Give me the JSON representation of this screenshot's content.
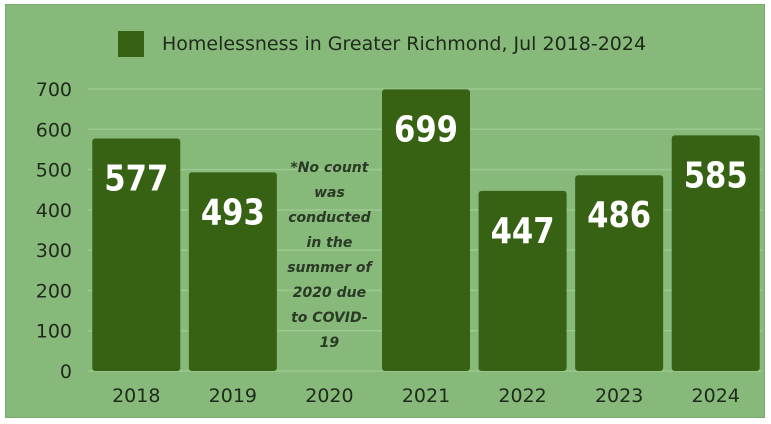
{
  "chart_data": {
    "type": "bar",
    "title": "",
    "xlabel": "",
    "ylabel": "",
    "legend": {
      "label": "Homelessness in Greater Richmond, Jul 2018-2024",
      "placement": "top"
    },
    "categories": [
      "2018",
      "2019",
      "2020",
      "2021",
      "2022",
      "2023",
      "2024"
    ],
    "values": [
      577,
      493,
      null,
      699,
      447,
      486,
      585
    ],
    "value_labels": [
      "577",
      "493",
      "",
      "699",
      "447",
      "486",
      "585"
    ],
    "ylim": [
      0,
      700
    ],
    "yticks": [
      "0",
      "100",
      "200",
      "300",
      "400",
      "500",
      "600",
      "700"
    ],
    "grid": true,
    "annotation": {
      "category": "2020",
      "lines": [
        "*No count",
        "was",
        "conducted",
        "in the",
        "summer of",
        "2020 due",
        "to COVID-",
        "19"
      ]
    },
    "colors": {
      "bar": "#376214",
      "background": "#86b97a",
      "grid": "#9cc98f"
    }
  }
}
